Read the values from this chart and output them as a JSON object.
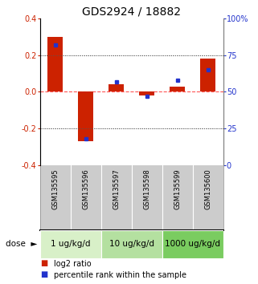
{
  "title": "GDS2924 / 18882",
  "samples": [
    "GSM135595",
    "GSM135596",
    "GSM135597",
    "GSM135598",
    "GSM135599",
    "GSM135600"
  ],
  "log2_ratio": [
    0.3,
    -0.27,
    0.04,
    -0.02,
    0.03,
    0.18
  ],
  "percentile_rank": [
    82,
    18,
    57,
    47,
    58,
    65
  ],
  "dose_groups": [
    {
      "label": "1 ug/kg/d",
      "start": 0,
      "end": 2,
      "color": "#d8f0c8"
    },
    {
      "label": "10 ug/kg/d",
      "start": 2,
      "end": 4,
      "color": "#b4e0a0"
    },
    {
      "label": "1000 ug/kg/d",
      "start": 4,
      "end": 6,
      "color": "#7acc60"
    }
  ],
  "ylim_left": [
    -0.4,
    0.4
  ],
  "ylim_right": [
    0,
    100
  ],
  "yticks_left": [
    -0.4,
    -0.2,
    0.0,
    0.2,
    0.4
  ],
  "yticks_right": [
    0,
    25,
    50,
    75,
    100
  ],
  "bar_color_red": "#cc2200",
  "bar_color_blue": "#2233cc",
  "hline_color": "#ff5555",
  "dotline_color": "#555555",
  "bg_sample_color": "#cccccc",
  "title_fontsize": 10,
  "tick_fontsize": 7,
  "dose_label_fontsize": 7.5,
  "legend_fontsize": 7
}
